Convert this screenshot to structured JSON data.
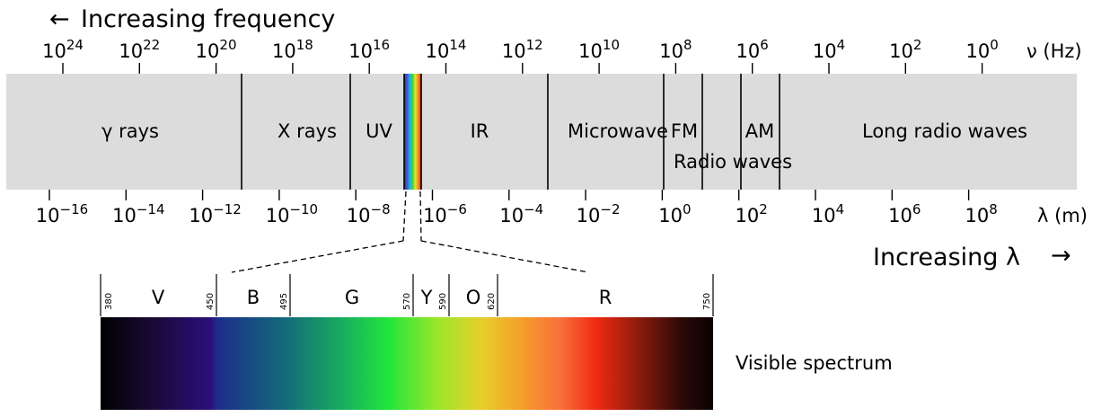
{
  "header": {
    "frequency_arrow": "←",
    "frequency_text": "Increasing frequency",
    "wavelength_text": "Increasing λ",
    "wavelength_arrow": "→"
  },
  "frequency_axis": {
    "unit": "ν (Hz)",
    "ticks": [
      {
        "base": "10",
        "exp": "24"
      },
      {
        "base": "10",
        "exp": "22"
      },
      {
        "base": "10",
        "exp": "20"
      },
      {
        "base": "10",
        "exp": "18"
      },
      {
        "base": "10",
        "exp": "16"
      },
      {
        "base": "10",
        "exp": "14"
      },
      {
        "base": "10",
        "exp": "12"
      },
      {
        "base": "10",
        "exp": "10"
      },
      {
        "base": "10",
        "exp": "8"
      },
      {
        "base": "10",
        "exp": "6"
      },
      {
        "base": "10",
        "exp": "4"
      },
      {
        "base": "10",
        "exp": "2"
      },
      {
        "base": "10",
        "exp": "0"
      }
    ]
  },
  "wavelength_axis": {
    "unit": "λ (m)",
    "ticks": [
      {
        "base": "10",
        "exp": "−16"
      },
      {
        "base": "10",
        "exp": "−14"
      },
      {
        "base": "10",
        "exp": "−12"
      },
      {
        "base": "10",
        "exp": "−10"
      },
      {
        "base": "10",
        "exp": "−8"
      },
      {
        "base": "10",
        "exp": "−6"
      },
      {
        "base": "10",
        "exp": "−4"
      },
      {
        "base": "10",
        "exp": "−2"
      },
      {
        "base": "10",
        "exp": "0"
      },
      {
        "base": "10",
        "exp": "2"
      },
      {
        "base": "10",
        "exp": "4"
      },
      {
        "base": "10",
        "exp": "6"
      },
      {
        "base": "10",
        "exp": "8"
      }
    ]
  },
  "bands": {
    "gamma": "γ rays",
    "xray": "X rays",
    "uv": "UV",
    "ir": "IR",
    "microwave": "Microwave",
    "fm": "FM",
    "am": "AM",
    "radio": "Radio waves",
    "long_radio": "Long radio waves"
  },
  "visible": {
    "label": "Visible spectrum",
    "bands": [
      "V",
      "B",
      "G",
      "Y",
      "O",
      "R"
    ],
    "boundaries_nm": [
      "380",
      "450",
      "495",
      "570",
      "590",
      "620",
      "750"
    ]
  },
  "colors": {
    "bar_fill": "#dcdcdc",
    "line": "#000000"
  }
}
